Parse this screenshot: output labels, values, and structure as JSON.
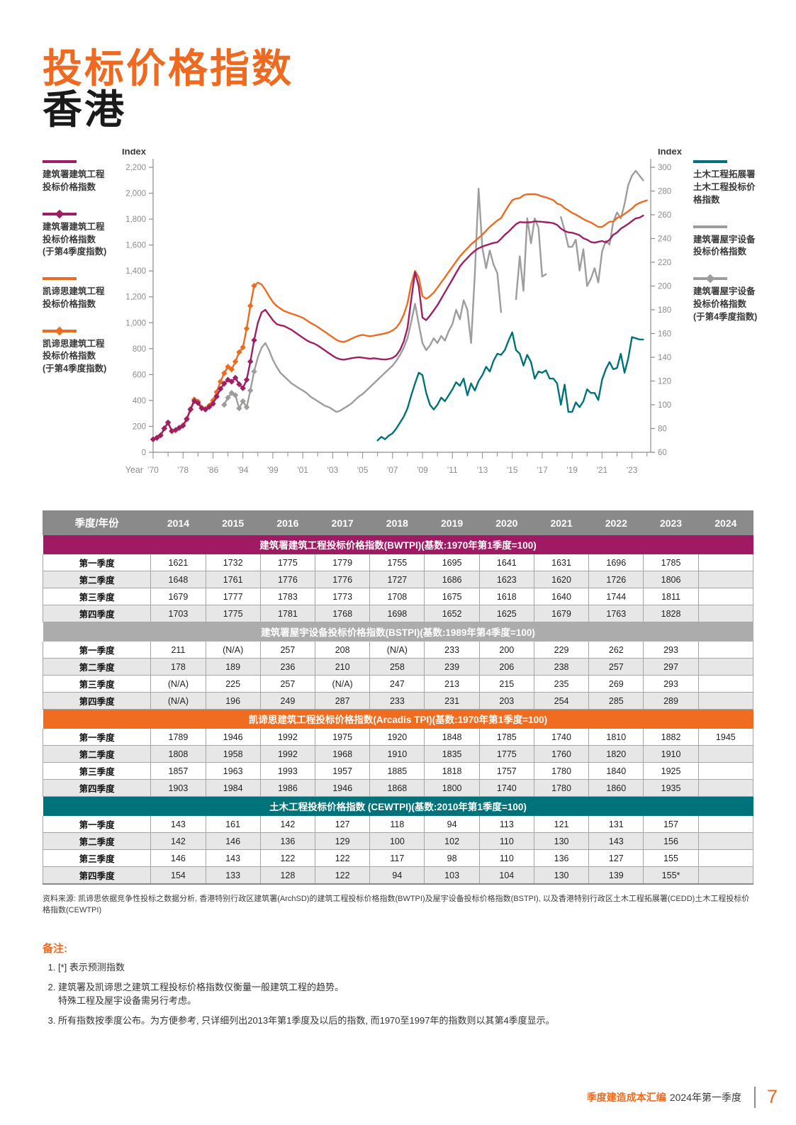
{
  "header": {
    "title": "投标价格指数",
    "subtitle": "香港"
  },
  "colors": {
    "orange": "#EE6A20",
    "magenta": "#9E1F63",
    "teal": "#00737A",
    "gray_line": "#9D9D9C",
    "table_header_gray": "#8A8A8A",
    "band_magenta": "#A01A63",
    "band_gray": "#ACACAC",
    "band_orange": "#F06C21",
    "band_teal": "#00737A",
    "row_alt": "#E7E7E7"
  },
  "legend_left": {
    "items": [
      {
        "label": "建筑署建筑工程\n投标价格指数",
        "color": "#9E1F63",
        "marker": false
      },
      {
        "label": "建筑署建筑工程\n投标价格指数\n(于第4季度指数)",
        "color": "#9E1F63",
        "marker": true
      },
      {
        "label": "凯谛思建筑工程\n投标价格指数",
        "color": "#ED6B21",
        "marker": false
      },
      {
        "label": "凯谛思建筑工程\n投标价格指数\n(于第4季度指数)",
        "color": "#ED6B21",
        "marker": true
      }
    ]
  },
  "legend_right": {
    "items": [
      {
        "label": "土木工程拓展署\n土木工程投标价\n格指数",
        "color": "#00737A",
        "marker": false
      },
      {
        "label": "建筑署屋宇设备\n投标价格指数",
        "color": "#9D9D9C",
        "marker": false
      },
      {
        "label": "建筑署屋宇设备\n投标价格指数\n(于第4季度指数)",
        "color": "#9D9D9C",
        "marker": true
      }
    ]
  },
  "chart_data": {
    "type": "line",
    "title": "",
    "x_axis": {
      "label": "Year",
      "tick_labels": [
        "'70",
        "'78",
        "'86",
        "'94",
        "'99",
        "'01",
        "'03",
        "'05",
        "'07",
        "'09",
        "'11",
        "'13",
        "'15",
        "'17",
        "'19",
        "'21",
        "'23"
      ],
      "tick_indices": [
        0,
        8,
        16,
        24,
        32,
        40,
        48,
        56,
        64,
        72,
        80,
        88,
        96,
        104,
        112,
        120,
        128
      ],
      "note": "index axis: one point per year 1970-1997 (Q4 values), then one point per quarter from 1998Q1; index 0 = 1970, index 28 = 1998Q1, index 132 = 2024Q1"
    },
    "y_left": {
      "label": "Index",
      "min": 0,
      "max": 2200,
      "step": 200
    },
    "y_right": {
      "label": "Index",
      "min": 60,
      "max": 300,
      "step": 20
    },
    "series": [
      {
        "id": "bstpi_annual",
        "name": "建筑署屋宇设备投标价格指数(于第4季度指数)",
        "axis": "right",
        "color": "#9D9D9C",
        "marker": true,
        "start_index": 19,
        "values": [
          100,
          106,
          110,
          108,
          97,
          103,
          98,
          112,
          128
        ]
      },
      {
        "id": "bstpi_quarterly",
        "name": "建筑署屋宇设备投标价格指数",
        "axis": "right",
        "color": "#9D9D9C",
        "marker": false,
        "start_index": 27,
        "values": [
          128,
          140,
          148,
          152,
          146,
          138,
          132,
          127,
          124,
          121,
          118,
          116,
          114,
          112,
          110,
          107,
          105,
          103,
          101,
          99,
          98,
          96,
          94,
          95,
          97,
          99,
          101,
          104,
          107,
          109,
          112,
          115,
          118,
          121,
          124,
          127,
          130,
          133,
          137,
          142,
          148,
          156,
          170,
          185,
          168,
          152,
          146,
          150,
          156,
          152,
          158,
          154,
          162,
          168,
          180,
          172,
          188,
          180,
          152,
          210,
          282,
          232,
          215,
          230,
          218,
          211,
          178,
          null,
          null,
          null,
          189,
          225,
          196,
          257,
          236,
          257,
          249,
          208,
          210,
          null,
          287,
          null,
          258,
          247,
          233,
          233,
          239,
          213,
          231,
          200,
          206,
          215,
          203,
          229,
          238,
          235,
          254,
          262,
          257,
          269,
          285,
          293,
          297,
          293,
          289
        ]
      },
      {
        "id": "cewtpi",
        "name": "土木工程拓展署土木工程投标价格指数",
        "axis": "right",
        "color": "#00737A",
        "marker": false,
        "start_index": 60,
        "values": [
          70,
          73,
          71,
          74,
          76,
          80,
          85,
          90,
          97,
          108,
          118,
          127,
          125,
          110,
          100,
          96,
          100,
          106,
          103,
          108,
          113,
          119,
          116,
          122,
          108,
          118,
          112,
          120,
          125,
          132,
          128,
          137,
          143,
          142,
          146,
          154,
          161,
          146,
          143,
          133,
          142,
          136,
          122,
          128,
          127,
          129,
          122,
          122,
          118,
          100,
          117,
          94,
          94,
          102,
          98,
          103,
          113,
          110,
          110,
          104,
          121,
          130,
          136,
          130,
          131,
          143,
          127,
          139,
          157,
          156,
          155,
          155
        ]
      },
      {
        "id": "arcadis_annual",
        "name": "凯谛思建筑工程投标价格指数(于第4季度指数)",
        "axis": "left",
        "color": "#ED6B21",
        "marker": true,
        "start_index": 0,
        "values": [
          100,
          110,
          132,
          182,
          228,
          162,
          170,
          190,
          208,
          260,
          335,
          408,
          392,
          345,
          335,
          360,
          400,
          465,
          545,
          610,
          660,
          640,
          700,
          773,
          810,
          955,
          1130,
          1285
        ]
      },
      {
        "id": "arcadis_quarterly",
        "name": "凯谛思建筑工程投标价格指数",
        "axis": "left",
        "color": "#ED6B21",
        "marker": false,
        "start_index": 27,
        "values": [
          1285,
          1310,
          1295,
          1255,
          1205,
          1160,
          1130,
          1110,
          1092,
          1080,
          1070,
          1060,
          1050,
          1038,
          1020,
          1000,
          985,
          968,
          948,
          928,
          908,
          888,
          868,
          856,
          852,
          862,
          876,
          890,
          900,
          906,
          900,
          896,
          900,
          906,
          912,
          918,
          926,
          940,
          962,
          1002,
          1062,
          1150,
          1300,
          1400,
          1350,
          1205,
          1185,
          1205,
          1232,
          1270,
          1310,
          1350,
          1392,
          1432,
          1472,
          1512,
          1545,
          1575,
          1605,
          1630,
          1655,
          1680,
          1710,
          1740,
          1765,
          1789,
          1808,
          1857,
          1903,
          1946,
          1958,
          1963,
          1984,
          1992,
          1992,
          1993,
          1986,
          1975,
          1968,
          1957,
          1946,
          1920,
          1910,
          1885,
          1868,
          1848,
          1835,
          1818,
          1800,
          1785,
          1775,
          1757,
          1740,
          1740,
          1760,
          1780,
          1780,
          1810,
          1820,
          1840,
          1860,
          1882,
          1910,
          1925,
          1935,
          1945
        ]
      },
      {
        "id": "bwtpi_annual",
        "name": "建筑署建筑工程投标价格指数(于第4季度指数)",
        "axis": "left",
        "color": "#9E1F63",
        "marker": true,
        "start_index": 0,
        "values": [
          100,
          112,
          130,
          185,
          230,
          165,
          172,
          188,
          205,
          255,
          330,
          395,
          380,
          340,
          330,
          350,
          375,
          430,
          490,
          530,
          560,
          545,
          575,
          525,
          495,
          560,
          700,
          865
        ]
      },
      {
        "id": "bwtpi_quarterly",
        "name": "建筑署建筑工程投标价格指数",
        "axis": "left",
        "color": "#9E1F63",
        "marker": false,
        "start_index": 27,
        "values": [
          865,
          1000,
          1080,
          1100,
          1060,
          1020,
          990,
          980,
          975,
          960,
          945,
          925,
          905,
          885,
          865,
          850,
          840,
          825,
          805,
          785,
          765,
          745,
          728,
          718,
          715,
          720,
          726,
          730,
          734,
          730,
          726,
          722,
          726,
          722,
          718,
          716,
          720,
          728,
          748,
          790,
          855,
          960,
          1180,
          1390,
          1280,
          1040,
          1020,
          1055,
          1095,
          1135,
          1185,
          1235,
          1285,
          1335,
          1385,
          1435,
          1470,
          1500,
          1530,
          1555,
          1575,
          1588,
          1598,
          1608,
          1616,
          1621,
          1648,
          1679,
          1703,
          1732,
          1761,
          1777,
          1775,
          1775,
          1776,
          1783,
          1781,
          1779,
          1776,
          1773,
          1768,
          1755,
          1727,
          1708,
          1698,
          1695,
          1686,
          1675,
          1652,
          1641,
          1623,
          1618,
          1625,
          1631,
          1620,
          1640,
          1679,
          1696,
          1726,
          1744,
          1763,
          1785,
          1806,
          1811,
          1828
        ]
      }
    ],
    "legend_position": "left-and-right"
  },
  "table": {
    "corner": "季度/年份",
    "years": [
      "2014",
      "2015",
      "2016",
      "2017",
      "2018",
      "2019",
      "2020",
      "2021",
      "2022",
      "2023",
      "2024"
    ],
    "row_labels": [
      "第一季度",
      "第二季度",
      "第三季度",
      "第四季度"
    ],
    "sections": [
      {
        "title": "建筑署建筑工程投标价格指数(BWTPI)(基数:1970年第1季度=100)",
        "color": "#A01A63",
        "rows": [
          [
            "1621",
            "1732",
            "1775",
            "1779",
            "1755",
            "1695",
            "1641",
            "1631",
            "1696",
            "1785",
            ""
          ],
          [
            "1648",
            "1761",
            "1776",
            "1776",
            "1727",
            "1686",
            "1623",
            "1620",
            "1726",
            "1806",
            ""
          ],
          [
            "1679",
            "1777",
            "1783",
            "1773",
            "1708",
            "1675",
            "1618",
            "1640",
            "1744",
            "1811",
            ""
          ],
          [
            "1703",
            "1775",
            "1781",
            "1768",
            "1698",
            "1652",
            "1625",
            "1679",
            "1763",
            "1828",
            ""
          ]
        ]
      },
      {
        "title": "建筑署屋宇设备投标价格指数(BSTPI)(基数:1989年第4季度=100)",
        "color": "#ACACAC",
        "rows": [
          [
            "211",
            "(N/A)",
            "257",
            "208",
            "(N/A)",
            "233",
            "200",
            "229",
            "262",
            "293",
            ""
          ],
          [
            "178",
            "189",
            "236",
            "210",
            "258",
            "239",
            "206",
            "238",
            "257",
            "297",
            ""
          ],
          [
            "(N/A)",
            "225",
            "257",
            "(N/A)",
            "247",
            "213",
            "215",
            "235",
            "269",
            "293",
            ""
          ],
          [
            "(N/A)",
            "196",
            "249",
            "287",
            "233",
            "231",
            "203",
            "254",
            "285",
            "289",
            ""
          ]
        ]
      },
      {
        "title": "凯谛思建筑工程投标价格指数(Arcadis TPI)(基数:1970年第1季度=100)",
        "color": "#F06C21",
        "rows": [
          [
            "1789",
            "1946",
            "1992",
            "1975",
            "1920",
            "1848",
            "1785",
            "1740",
            "1810",
            "1882",
            "1945"
          ],
          [
            "1808",
            "1958",
            "1992",
            "1968",
            "1910",
            "1835",
            "1775",
            "1760",
            "1820",
            "1910",
            ""
          ],
          [
            "1857",
            "1963",
            "1993",
            "1957",
            "1885",
            "1818",
            "1757",
            "1780",
            "1840",
            "1925",
            ""
          ],
          [
            "1903",
            "1984",
            "1986",
            "1946",
            "1868",
            "1800",
            "1740",
            "1780",
            "1860",
            "1935",
            ""
          ]
        ]
      },
      {
        "title": "土木工程投标价格指数 (CEWTPI)(基数:2010年第1季度=100)",
        "color": "#00737A",
        "rows": [
          [
            "143",
            "161",
            "142",
            "127",
            "118",
            "94",
            "113",
            "121",
            "131",
            "157",
            ""
          ],
          [
            "142",
            "146",
            "136",
            "129",
            "100",
            "102",
            "110",
            "130",
            "143",
            "156",
            ""
          ],
          [
            "146",
            "143",
            "122",
            "122",
            "117",
            "98",
            "110",
            "136",
            "127",
            "155",
            ""
          ],
          [
            "154",
            "133",
            "128",
            "122",
            "94",
            "103",
            "104",
            "130",
            "139",
            "155*",
            ""
          ]
        ]
      }
    ]
  },
  "source": "资料来源: 凯谛思依据竞争性投标之数据分析, 香港特别行政区建筑署(ArchSD)的建筑工程投标价格指数(BWTPI)及屋宇设备投标价格指数(BSTPI), 以及香港特别行政区土木工程拓展署(CEDD)土木工程投标价格指数(CEWTPI)",
  "notes": {
    "title": "备注:",
    "items": [
      "[*] 表示预测指数",
      "建筑署及凯谛思之建筑工程投标价格指数仅衡量一般建筑工程的趋势。\n特殊工程及屋宇设备需另行考虑。",
      "所有指数按季度公布。为方便参考, 只详细列出2013年第1季度及以后的指数, 而1970至1997年的指数则以其第4季度显示。"
    ]
  },
  "footer": {
    "brand": "季度建造成本汇编",
    "suffix": "2024年第一季度",
    "page_number": "7"
  }
}
